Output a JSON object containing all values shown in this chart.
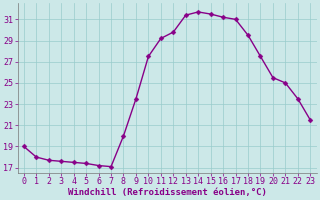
{
  "x": [
    0,
    1,
    2,
    3,
    4,
    5,
    6,
    7,
    8,
    9,
    10,
    11,
    12,
    13,
    14,
    15,
    16,
    17,
    18,
    19,
    20,
    21,
    22,
    23
  ],
  "y": [
    19.0,
    18.0,
    17.7,
    17.6,
    17.5,
    17.4,
    17.2,
    17.1,
    20.0,
    23.5,
    27.5,
    29.2,
    29.8,
    31.4,
    31.7,
    31.5,
    31.2,
    31.0,
    29.5,
    27.5,
    25.5,
    25.0,
    23.5,
    21.5
  ],
  "line_color": "#880088",
  "marker_color": "#880088",
  "bg_color": "#cce8e8",
  "grid_color": "#99cccc",
  "xlabel": "Windchill (Refroidissement éolien,°C)",
  "xlim": [
    -0.5,
    23.5
  ],
  "ylim": [
    16.5,
    32.5
  ],
  "yticks": [
    17,
    19,
    21,
    23,
    25,
    27,
    29,
    31
  ],
  "xticks": [
    0,
    1,
    2,
    3,
    4,
    5,
    6,
    7,
    8,
    9,
    10,
    11,
    12,
    13,
    14,
    15,
    16,
    17,
    18,
    19,
    20,
    21,
    22,
    23
  ],
  "font_color": "#880088",
  "tick_fontsize": 6.0,
  "xlabel_fontsize": 6.5,
  "marker_size": 2.5,
  "line_width": 1.0
}
